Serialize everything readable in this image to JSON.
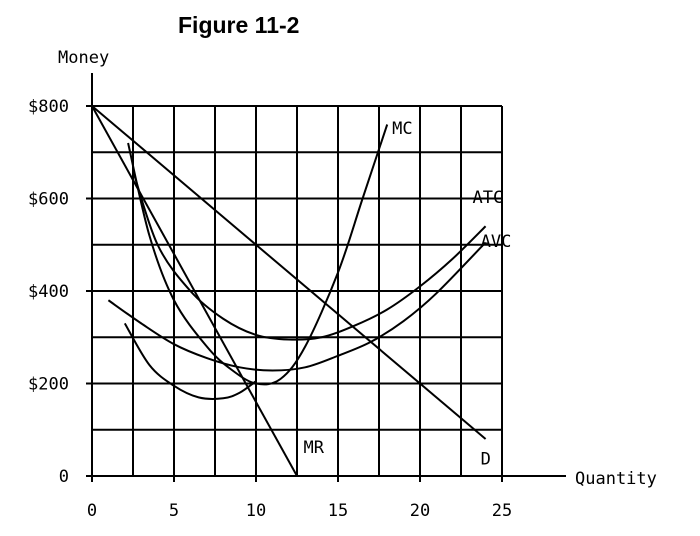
{
  "chart_data": {
    "type": "line",
    "title": "Figure 11-2",
    "ylabel": "Money",
    "xlabel": "Quantity",
    "xlim": [
      0,
      25
    ],
    "ylim": [
      0,
      800
    ],
    "x_ticks": [
      0,
      5,
      10,
      15,
      20,
      25
    ],
    "x_tick_labels": [
      "0",
      "5",
      "10",
      "15",
      "20",
      "25"
    ],
    "y_ticks": [
      0,
      200,
      400,
      600,
      800
    ],
    "y_tick_labels": [
      "0",
      "$200",
      "$400",
      "$600",
      "$800"
    ],
    "grid": true,
    "series": [
      {
        "name": "MC",
        "points": [
          [
            2.2,
            720
          ],
          [
            3.5,
            520
          ],
          [
            5,
            380
          ],
          [
            7,
            280
          ],
          [
            8.5,
            230
          ],
          [
            10,
            200
          ],
          [
            11.5,
            210
          ],
          [
            13,
            280
          ],
          [
            15,
            440
          ],
          [
            16.5,
            600
          ],
          [
            18,
            760
          ]
        ]
      },
      {
        "name": "ATC",
        "points": [
          [
            2.5,
            660
          ],
          [
            4,
            500
          ],
          [
            6,
            400
          ],
          [
            8,
            340
          ],
          [
            10,
            305
          ],
          [
            12,
            295
          ],
          [
            14,
            300
          ],
          [
            16,
            325
          ],
          [
            18,
            360
          ],
          [
            20,
            410
          ],
          [
            22,
            470
          ],
          [
            24,
            540
          ]
        ]
      },
      {
        "name": "AVC",
        "points": [
          [
            1,
            380
          ],
          [
            3,
            330
          ],
          [
            5,
            285
          ],
          [
            7,
            255
          ],
          [
            9,
            235
          ],
          [
            11,
            228
          ],
          [
            13,
            235
          ],
          [
            15,
            260
          ],
          [
            17,
            290
          ],
          [
            19,
            335
          ],
          [
            21,
            395
          ],
          [
            24,
            505
          ]
        ]
      },
      {
        "name": "MR",
        "points": [
          [
            0,
            800
          ],
          [
            12.5,
            0
          ]
        ]
      },
      {
        "name": "D",
        "points": [
          [
            0,
            800
          ],
          [
            24,
            80
          ]
        ]
      },
      {
        "name": "",
        "points": [
          [
            2,
            330
          ],
          [
            3.5,
            240
          ],
          [
            5,
            195
          ],
          [
            6.5,
            170
          ],
          [
            8,
            168
          ],
          [
            9,
            180
          ],
          [
            10,
            205
          ]
        ]
      }
    ],
    "line_labels": [
      {
        "text": "MC",
        "x": 18.3,
        "y": 740
      },
      {
        "text": "ATC",
        "x": 23.2,
        "y": 590
      },
      {
        "text": "AVC",
        "x": 23.7,
        "y": 495
      },
      {
        "text": "MR",
        "x": 12.9,
        "y": 50
      },
      {
        "text": "D",
        "x": 23.7,
        "y": 25
      }
    ]
  }
}
